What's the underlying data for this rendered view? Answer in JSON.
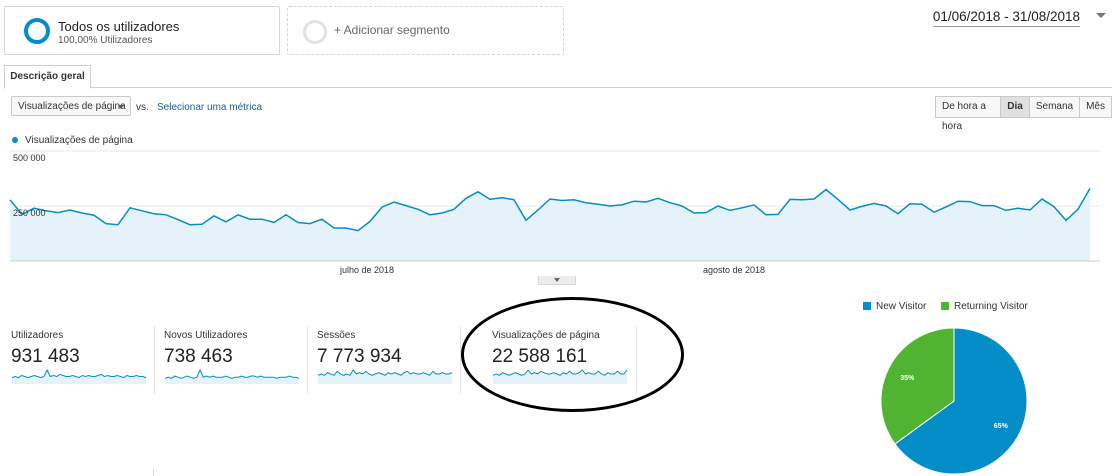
{
  "segments": {
    "active": {
      "name": "Todos os utilizadores",
      "subtitle": "100,00% Utilizadores"
    },
    "add_label": "+ Adicionar segmento"
  },
  "date_range": "01/06/2018 - 31/08/2018",
  "tabs": [
    "Descrição geral"
  ],
  "metric_selector": {
    "selected": "Visualizações de página",
    "vs_label": "vs.",
    "select_metric_link": "Selecionar uma métrica"
  },
  "time_buttons": [
    {
      "label": "De hora a hora",
      "active": false
    },
    {
      "label": "Dia",
      "active": true
    },
    {
      "label": "Semana",
      "active": false
    },
    {
      "label": "Mês",
      "active": false
    }
  ],
  "colors": {
    "primary": "#058dc7",
    "secondary": "#50b432",
    "area_fill": "#e5f2f9"
  },
  "chart_data": [
    {
      "type": "area",
      "series": [
        {
          "name": "Visualizações de página",
          "values": [
            278000,
            212000,
            240000,
            228000,
            220000,
            232000,
            218000,
            208000,
            170000,
            165000,
            242000,
            228000,
            215000,
            210000,
            188000,
            165000,
            167000,
            205000,
            178000,
            210000,
            190000,
            190000,
            175000,
            210000,
            175000,
            170000,
            190000,
            150000,
            150000,
            138000,
            180000,
            245000,
            268000,
            252000,
            235000,
            210000,
            218000,
            235000,
            285000,
            315000,
            280000,
            288000,
            278000,
            185000,
            232000,
            282000,
            275000,
            278000,
            265000,
            258000,
            250000,
            255000,
            272000,
            268000,
            285000,
            265000,
            250000,
            218000,
            220000,
            250000,
            230000,
            242000,
            255000,
            210000,
            212000,
            280000,
            278000,
            282000,
            325000,
            280000,
            232000,
            248000,
            262000,
            250000,
            215000,
            260000,
            258000,
            222000,
            246000,
            272000,
            270000,
            252000,
            252000,
            230000,
            240000,
            232000,
            282000,
            247000,
            185000,
            235000,
            330000
          ]
        }
      ],
      "x_labels": [
        "julho de 2018",
        "agosto de 2018"
      ],
      "y_ticks": [
        250000,
        500000
      ],
      "y_tick_labels": [
        "250 000",
        "500 000"
      ],
      "ylim": [
        0,
        500000
      ],
      "legend": "top-left"
    },
    {
      "type": "pie",
      "categories": [
        "New Visitor",
        "Returning Visitor"
      ],
      "values": [
        65,
        35
      ],
      "labels": [
        "65%",
        "35%"
      ],
      "legend": "top"
    }
  ],
  "scorecards": [
    {
      "label": "Utilizadores",
      "value": "931 483",
      "spark": [
        4,
        5,
        4,
        6,
        5,
        4,
        5,
        6,
        5,
        4,
        5,
        11,
        5,
        6,
        5,
        7,
        6,
        5,
        5,
        6,
        5,
        4,
        6,
        5,
        6,
        5,
        5,
        6,
        7,
        5,
        6,
        5,
        5,
        6,
        5,
        4,
        6,
        5,
        5,
        6,
        5,
        5,
        4
      ]
    },
    {
      "label": "Novos Utilizadores",
      "value": "738 463",
      "spark": [
        3,
        4,
        3,
        5,
        4,
        3,
        4,
        5,
        4,
        3,
        4,
        10,
        4,
        5,
        4,
        5,
        4,
        4,
        4,
        5,
        4,
        3,
        4,
        4,
        5,
        4,
        4,
        5,
        5,
        4,
        5,
        4,
        4,
        4,
        4,
        3,
        4,
        4,
        4,
        5,
        4,
        4,
        3
      ]
    },
    {
      "label": "Sessões",
      "value": "7 773 934",
      "spark": [
        5,
        6,
        5,
        7,
        6,
        5,
        8,
        6,
        5,
        6,
        5,
        9,
        6,
        7,
        6,
        8,
        6,
        5,
        6,
        7,
        6,
        5,
        7,
        6,
        7,
        6,
        5,
        7,
        8,
        6,
        7,
        6,
        6,
        7,
        6,
        5,
        8,
        6,
        6,
        7,
        6,
        6,
        7
      ]
    },
    {
      "label": "Visualizações de página",
      "value": "22 588 161",
      "spark": [
        5,
        6,
        5,
        7,
        6,
        5,
        6,
        7,
        6,
        5,
        6,
        9,
        6,
        7,
        6,
        8,
        7,
        6,
        6,
        7,
        6,
        5,
        7,
        6,
        8,
        6,
        6,
        7,
        9,
        6,
        7,
        6,
        6,
        8,
        6,
        5,
        7,
        6,
        6,
        8,
        6,
        6,
        9
      ]
    }
  ]
}
